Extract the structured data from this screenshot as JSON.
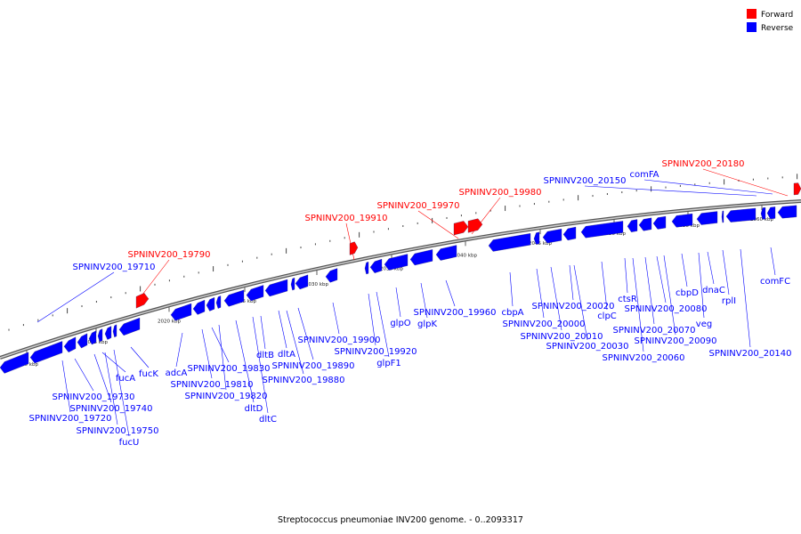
{
  "legend": {
    "forward": {
      "label": "Forward",
      "color": "#ff0000"
    },
    "reverse": {
      "label": "Reverse",
      "color": "#0000ff"
    }
  },
  "caption": "Streptococcus pneumoniae INV200 genome. - 0..2093317",
  "ticks": [
    "2010 kbp",
    "2015 kbp",
    "2020 kbp",
    "2025 kbp",
    "2030 kbp",
    "2035 kbp",
    "2040 kbp",
    "2045 kbp",
    "2050 kbp",
    "2055 kbp",
    "2060 kbp"
  ],
  "forward_labels": [
    "SPNINV200_19790",
    "SPNINV200_19910",
    "SPNINV200_19970",
    "SPNINV200_19980",
    "SPNINV200_20180"
  ],
  "reverse_labels_above": [
    "SPNINV200_19710",
    "SPNINV200_20150",
    "comFA"
  ],
  "reverse_labels_below": [
    "SPNINV200_19730",
    "SPNINV200_19740",
    "SPNINV200_19720",
    "SPNINV200_19750",
    "fucU",
    "fucA",
    "fucK",
    "adcA",
    "SPNINV200_19830",
    "SPNINV200_19810",
    "SPNINV200_19820",
    "dltD",
    "dltC",
    "dltB",
    "dltA",
    "SPNINV200_19900",
    "SPNINV200_19890",
    "SPNINV200_19880",
    "SPNINV200_19920",
    "glpF1",
    "glpO",
    "glpK",
    "SPNINV200_19960",
    "cbpA",
    "SPNINV200_20000",
    "SPNINV200_20010",
    "SPNINV200_20020",
    "SPNINV200_20030",
    "clpC",
    "ctsR",
    "SPNINV200_20080",
    "SPNINV200_20070",
    "SPNINV200_20090",
    "SPNINV200_20060",
    "cbpD",
    "dnaC",
    "veg",
    "rplI",
    "SPNINV200_20140",
    "comFC"
  ]
}
